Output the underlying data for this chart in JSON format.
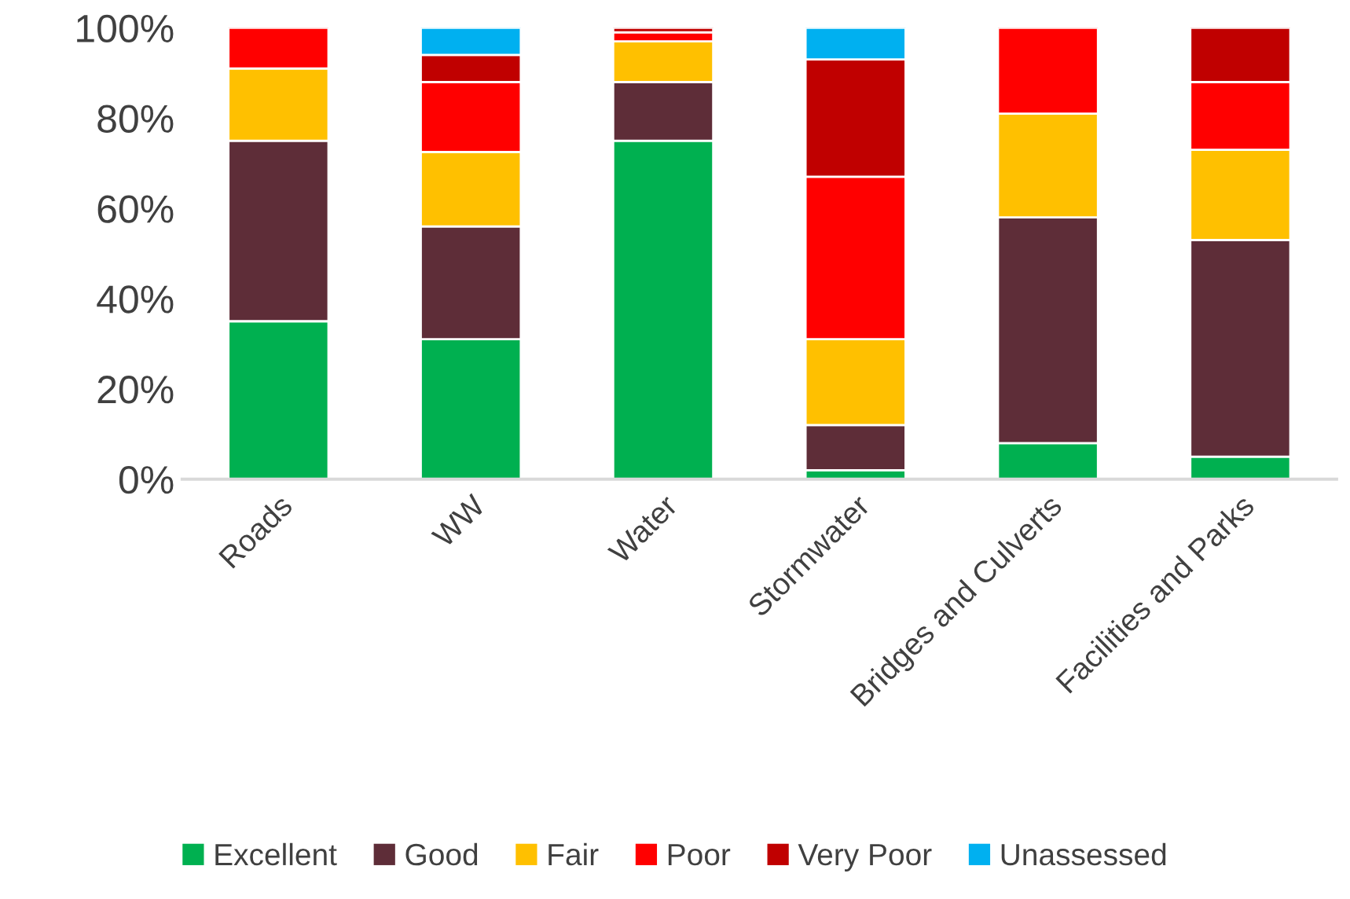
{
  "chart_data": {
    "type": "bar",
    "stacked": true,
    "categories": [
      "Roads",
      "WW",
      "Water",
      "Stormwater",
      "Bridges and Culverts",
      "Facilities and Parks"
    ],
    "series": [
      {
        "name": "Excellent",
        "color": "#00b050",
        "values": [
          35,
          31,
          75,
          2,
          8,
          5
        ]
      },
      {
        "name": "Good",
        "color": "#5e2d38",
        "values": [
          40,
          25,
          13,
          10,
          50,
          48
        ]
      },
      {
        "name": "Fair",
        "color": "#ffc000",
        "values": [
          16,
          16.5,
          9,
          19,
          23,
          20
        ]
      },
      {
        "name": "Poor",
        "color": "#ff0000",
        "values": [
          9,
          15.5,
          2,
          36,
          19,
          15
        ]
      },
      {
        "name": "Very Poor",
        "color": "#c00000",
        "values": [
          null,
          6,
          1,
          26,
          null,
          12
        ]
      },
      {
        "name": "Unassessed",
        "color": "#00b0f0",
        "values": [
          null,
          6,
          null,
          7,
          null,
          null
        ]
      }
    ],
    "ylim": [
      0,
      100
    ],
    "yticks": [
      {
        "value": 0,
        "label": "0%"
      },
      {
        "value": 20,
        "label": "20%"
      },
      {
        "value": 40,
        "label": "40%"
      },
      {
        "value": 60,
        "label": "60%"
      },
      {
        "value": 80,
        "label": "80%"
      },
      {
        "value": 100,
        "label": "100%"
      }
    ],
    "grid": false,
    "legend": "bottom"
  }
}
